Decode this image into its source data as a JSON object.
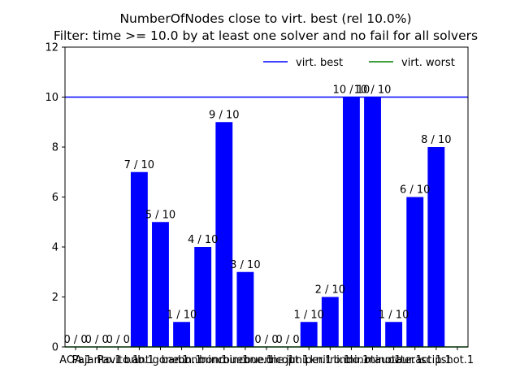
{
  "chart_data": {
    "type": "bar",
    "title_line1": "NumberOfNodes close to virt. best (rel 10.0%)",
    "title_line2": "Filter: time >= 10.0 by at least one solver and no fail for all solvers",
    "xlabel": "",
    "ylabel": "",
    "ylim": [
      0,
      12
    ],
    "yticks": [
      0,
      2,
      4,
      6,
      8,
      10,
      12
    ],
    "grid": false,
    "categories": [
      "AOA.1",
      "Pajarito.1",
      "Pavito.1",
      "bnb.1",
      "antigone.1",
      "baron.1",
      "bonmin.1",
      "bonmin.1",
      "couenne.1",
      "couenne.1",
      "dicopt.1",
      "juniper.1",
      "knitro.1",
      "lindo.1",
      "minotaur.1",
      "minotaur.1",
      "octeract.1",
      "scip.1",
      "shot.1"
    ],
    "values": [
      0,
      0,
      0,
      7,
      5,
      1,
      4,
      9,
      3,
      0,
      0,
      1,
      2,
      10,
      10,
      1,
      6,
      8,
      0
    ],
    "bar_labels": [
      "0 / 0",
      "0 / 0",
      "0 / 0",
      "7 / 10",
      "5 / 10",
      "1 / 10",
      "4 / 10",
      "9 / 10",
      "3 / 10",
      "0 / 0",
      "0 / 0",
      "1 / 10",
      "2 / 10",
      "10 / 10",
      "10 / 10",
      "1 / 10",
      "6 / 10",
      "8 / 10",
      ""
    ],
    "bar_color": "#0000ff",
    "reference_lines": [
      {
        "name": "virt. best",
        "value": 10,
        "color": "#0000ff"
      },
      {
        "name": "virt. worst",
        "value": 0,
        "color": "#008000"
      }
    ],
    "legend_position": "top-right"
  }
}
